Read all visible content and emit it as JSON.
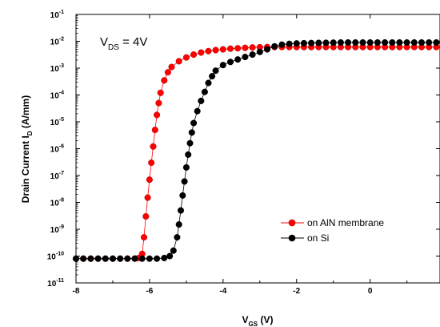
{
  "chart_data": {
    "type": "scatter",
    "annotation": {
      "symbol": "V",
      "subscript": "DS",
      "text": " = 4V"
    },
    "xlabel": {
      "symbol": "V",
      "subscript": "GS",
      "text": " (V)"
    },
    "ylabel": {
      "text": "Drain Current I",
      "subscript": "D",
      "unit": " (A/mm)"
    },
    "x_ticks": [
      "-8",
      "-6",
      "-4",
      "-2",
      "0"
    ],
    "y_ticks": [
      {
        "base": "10",
        "exp": "-11"
      },
      {
        "base": "10",
        "exp": "-10"
      },
      {
        "base": "10",
        "exp": "-9"
      },
      {
        "base": "10",
        "exp": "-8"
      },
      {
        "base": "10",
        "exp": "-7"
      },
      {
        "base": "10",
        "exp": "-6"
      },
      {
        "base": "10",
        "exp": "-5"
      },
      {
        "base": "10",
        "exp": "-4"
      },
      {
        "base": "10",
        "exp": "-3"
      },
      {
        "base": "10",
        "exp": "-2"
      },
      {
        "base": "10",
        "exp": "-1"
      }
    ],
    "xlim": [
      -8,
      1.9
    ],
    "ylim": [
      1e-11,
      0.1
    ],
    "y_scale": "log",
    "grid": false,
    "legend_position": "lower-right",
    "series": [
      {
        "name": "on AlN membrane",
        "color": "#ff0000",
        "points": [
          [
            -8.0,
            8e-11
          ],
          [
            -7.8,
            8e-11
          ],
          [
            -7.6,
            8e-11
          ],
          [
            -7.4,
            8e-11
          ],
          [
            -7.2,
            8e-11
          ],
          [
            -7.0,
            8e-11
          ],
          [
            -6.8,
            8e-11
          ],
          [
            -6.6,
            8e-11
          ],
          [
            -6.4,
            8.1e-11
          ],
          [
            -6.3,
            8.5e-11
          ],
          [
            -6.2,
            1.2e-10
          ],
          [
            -6.15,
            5e-10
          ],
          [
            -6.1,
            3e-09
          ],
          [
            -6.05,
            1.5e-08
          ],
          [
            -6.0,
            7e-08
          ],
          [
            -5.95,
            3e-07
          ],
          [
            -5.9,
            1.2e-06
          ],
          [
            -5.85,
            5e-06
          ],
          [
            -5.8,
            1.8e-05
          ],
          [
            -5.75,
            5e-05
          ],
          [
            -5.7,
            0.00012
          ],
          [
            -5.6,
            0.00035
          ],
          [
            -5.5,
            0.0007
          ],
          [
            -5.4,
            0.0011
          ],
          [
            -5.2,
            0.0018
          ],
          [
            -5.0,
            0.0025
          ],
          [
            -4.8,
            0.0032
          ],
          [
            -4.6,
            0.0038
          ],
          [
            -4.4,
            0.0043
          ],
          [
            -4.2,
            0.0047
          ],
          [
            -4.0,
            0.005
          ],
          [
            -3.8,
            0.0053
          ],
          [
            -3.6,
            0.0055
          ],
          [
            -3.4,
            0.0057
          ],
          [
            -3.2,
            0.0059
          ],
          [
            -3.0,
            0.006
          ],
          [
            -2.8,
            0.0061
          ],
          [
            -2.6,
            0.0061
          ],
          [
            -2.4,
            0.0061
          ],
          [
            -2.2,
            0.0061
          ],
          [
            -2.0,
            0.0061
          ],
          [
            -1.8,
            0.0061
          ],
          [
            -1.6,
            0.0061
          ],
          [
            -1.4,
            0.0061
          ],
          [
            -1.2,
            0.0061
          ],
          [
            -1.0,
            0.0061
          ],
          [
            -0.8,
            0.0061
          ],
          [
            -0.6,
            0.0061
          ],
          [
            -0.4,
            0.0061
          ],
          [
            -0.2,
            0.0061
          ],
          [
            0.0,
            0.0061
          ],
          [
            0.2,
            0.0061
          ],
          [
            0.4,
            0.0061
          ],
          [
            0.6,
            0.0061
          ],
          [
            0.8,
            0.0061
          ],
          [
            1.0,
            0.0061
          ],
          [
            1.2,
            0.0061
          ],
          [
            1.4,
            0.0061
          ],
          [
            1.6,
            0.0061
          ],
          [
            1.8,
            0.0061
          ]
        ]
      },
      {
        "name": "on Si",
        "color": "#000000",
        "points": [
          [
            -8.0,
            8e-11
          ],
          [
            -7.8,
            8e-11
          ],
          [
            -7.6,
            8e-11
          ],
          [
            -7.4,
            8e-11
          ],
          [
            -7.2,
            8e-11
          ],
          [
            -7.0,
            8e-11
          ],
          [
            -6.8,
            8e-11
          ],
          [
            -6.6,
            8e-11
          ],
          [
            -6.4,
            8e-11
          ],
          [
            -6.2,
            8e-11
          ],
          [
            -6.0,
            8e-11
          ],
          [
            -5.8,
            8e-11
          ],
          [
            -5.6,
            8.5e-11
          ],
          [
            -5.45,
            1e-10
          ],
          [
            -5.35,
            1.6e-10
          ],
          [
            -5.25,
            5e-10
          ],
          [
            -5.2,
            1.5e-09
          ],
          [
            -5.15,
            5e-09
          ],
          [
            -5.1,
            1.8e-08
          ],
          [
            -5.05,
            6e-08
          ],
          [
            -5.0,
            2e-07
          ],
          [
            -4.95,
            6e-07
          ],
          [
            -4.9,
            1.6e-06
          ],
          [
            -4.85,
            4e-06
          ],
          [
            -4.8,
            9e-06
          ],
          [
            -4.7,
            2.5e-05
          ],
          [
            -4.6,
            6e-05
          ],
          [
            -4.5,
            0.00013
          ],
          [
            -4.4,
            0.00028
          ],
          [
            -4.3,
            0.0005
          ],
          [
            -4.2,
            0.0008
          ],
          [
            -4.0,
            0.0013
          ],
          [
            -3.8,
            0.0017
          ],
          [
            -3.6,
            0.0021
          ],
          [
            -3.4,
            0.0026
          ],
          [
            -3.2,
            0.0032
          ],
          [
            -3.0,
            0.004
          ],
          [
            -2.8,
            0.005
          ],
          [
            -2.6,
            0.0065
          ],
          [
            -2.4,
            0.0075
          ],
          [
            -2.2,
            0.008
          ],
          [
            -2.0,
            0.0083
          ],
          [
            -1.8,
            0.0085
          ],
          [
            -1.6,
            0.0086
          ],
          [
            -1.4,
            0.0087
          ],
          [
            -1.2,
            0.0088
          ],
          [
            -1.0,
            0.0089
          ],
          [
            -0.8,
            0.009
          ],
          [
            -0.6,
            0.009
          ],
          [
            -0.4,
            0.009
          ],
          [
            -0.2,
            0.009
          ],
          [
            0.0,
            0.009
          ],
          [
            0.2,
            0.009
          ],
          [
            0.4,
            0.009
          ],
          [
            0.6,
            0.009
          ],
          [
            0.8,
            0.009
          ],
          [
            1.0,
            0.009
          ],
          [
            1.2,
            0.009
          ],
          [
            1.4,
            0.009
          ],
          [
            1.6,
            0.009
          ],
          [
            1.8,
            0.009
          ]
        ]
      }
    ]
  }
}
